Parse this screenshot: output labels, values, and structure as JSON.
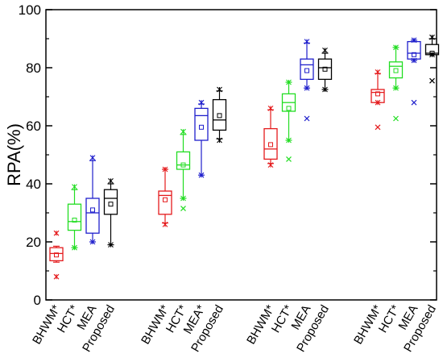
{
  "chart_data": {
    "type": "box",
    "ylabel": "RPA(%)",
    "ylim": [
      0,
      100
    ],
    "yticks": [
      0,
      20,
      40,
      60,
      80,
      100
    ],
    "grid": false,
    "method_colors": {
      "BHWM*": "#e41a1c",
      "HCT*": "#22dd22",
      "MEA": "#1f1fcc",
      "MEA*": "#1f1fcc",
      "Proposed": "#000000"
    },
    "groups": [
      {
        "boxes": [
          {
            "label": "BHWM*",
            "min": 13,
            "q1": 13.5,
            "median": 16,
            "q3": 18,
            "max": 18.5,
            "mean": 15.5,
            "whisker_low": 8,
            "whisker_high": 23,
            "outliers": []
          },
          {
            "label": "HCT*",
            "min": 18,
            "q1": 24,
            "median": 27,
            "q3": 33,
            "max": 38,
            "mean": 27.5,
            "whisker_low": 18,
            "whisker_high": 39,
            "outliers": []
          },
          {
            "label": "MEA",
            "min": 20,
            "q1": 23,
            "median": 30,
            "q3": 35,
            "max": 48,
            "mean": 31,
            "whisker_low": 20,
            "whisker_high": 49,
            "outliers": []
          },
          {
            "label": "Proposed",
            "min": 19,
            "q1": 29.5,
            "median": 35,
            "q3": 38,
            "max": 40,
            "mean": 33,
            "whisker_low": 19,
            "whisker_high": 41,
            "outliers": []
          }
        ]
      },
      {
        "boxes": [
          {
            "label": "BHWM*",
            "min": 26.5,
            "q1": 29.5,
            "median": 36,
            "q3": 37.5,
            "max": 45,
            "mean": 34.5,
            "whisker_low": 26,
            "whisker_high": 45,
            "outliers": []
          },
          {
            "label": "HCT*",
            "min": 35,
            "q1": 45,
            "median": 46.5,
            "q3": 51,
            "max": 57,
            "mean": 46.5,
            "whisker_low": 35,
            "whisker_high": 58,
            "outliers": [
              31.5
            ]
          },
          {
            "label": "MEA*",
            "min": 43,
            "q1": 55,
            "median": 63.5,
            "q3": 66,
            "max": 67.5,
            "mean": 59.5,
            "whisker_low": 43,
            "whisker_high": 68,
            "outliers": []
          },
          {
            "label": "Proposed",
            "min": 55.5,
            "q1": 58.5,
            "median": 62,
            "q3": 69,
            "max": 72,
            "mean": 63.5,
            "whisker_low": 55,
            "whisker_high": 72.5,
            "outliers": []
          }
        ]
      },
      {
        "boxes": [
          {
            "label": "BHWM*",
            "min": 47,
            "q1": 48.5,
            "median": 52,
            "q3": 59,
            "max": 65.5,
            "mean": 53.5,
            "whisker_low": 46.5,
            "whisker_high": 66,
            "outliers": []
          },
          {
            "label": "HCT*",
            "min": 55,
            "q1": 65,
            "median": 68,
            "q3": 71,
            "max": 75,
            "mean": 66,
            "whisker_low": 55,
            "whisker_high": 75,
            "outliers": [
              48.5
            ]
          },
          {
            "label": "MEA",
            "min": 73,
            "q1": 76,
            "median": 81,
            "q3": 83,
            "max": 88.5,
            "mean": 79,
            "whisker_low": 73,
            "whisker_high": 89,
            "outliers": [
              62.5
            ]
          },
          {
            "label": "Proposed",
            "min": 72.5,
            "q1": 76,
            "median": 80,
            "q3": 83,
            "max": 85,
            "mean": 79.5,
            "whisker_low": 72.5,
            "whisker_high": 86,
            "outliers": []
          }
        ]
      },
      {
        "boxes": [
          {
            "label": "BHWM*",
            "min": 68,
            "q1": 68,
            "median": 71.5,
            "q3": 72.5,
            "max": 78,
            "mean": 71,
            "whisker_low": 68,
            "whisker_high": 78.5,
            "outliers": [
              59.5
            ]
          },
          {
            "label": "HCT*",
            "min": 73,
            "q1": 76.5,
            "median": 80.5,
            "q3": 82,
            "max": 87,
            "mean": 79,
            "whisker_low": 73,
            "whisker_high": 87,
            "outliers": [
              62.5
            ]
          },
          {
            "label": "MEA",
            "min": 82.5,
            "q1": 83,
            "median": 85,
            "q3": 89,
            "max": 89.5,
            "mean": 84.5,
            "whisker_low": 82.5,
            "whisker_high": 89.5,
            "outliers": [
              68
            ]
          },
          {
            "label": "Proposed",
            "min": 84.5,
            "q1": 84.5,
            "median": 85,
            "q3": 88,
            "max": 90,
            "mean": 85,
            "whisker_low": 84.5,
            "whisker_high": 90.5,
            "outliers": [
              75.5
            ]
          }
        ]
      }
    ]
  }
}
